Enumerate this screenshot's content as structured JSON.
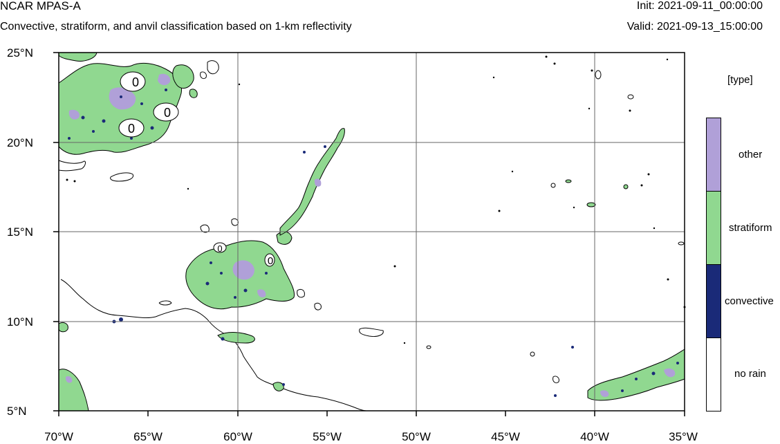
{
  "header": {
    "title": "NCAR MPAS-A",
    "subtitle": "Convective, stratiform, and anvil classification based on 1-km reflectivity",
    "init": "Init: 2021-09-11_00:00:00",
    "valid": "Valid: 2021-09-13_15:00:00"
  },
  "map": {
    "lat_range": [
      5,
      25
    ],
    "lon_range": [
      -70,
      -35
    ],
    "lat_ticks": [
      {
        "value": 25,
        "label": "25°N"
      },
      {
        "value": 20,
        "label": "20°N"
      },
      {
        "value": 15,
        "label": "15°N"
      },
      {
        "value": 10,
        "label": "10°N"
      },
      {
        "value": 5,
        "label": "5°N"
      }
    ],
    "lon_ticks": [
      {
        "value": -70,
        "label": "70°W"
      },
      {
        "value": -65,
        "label": "65°W"
      },
      {
        "value": -60,
        "label": "60°W"
      },
      {
        "value": -55,
        "label": "55°W"
      },
      {
        "value": -50,
        "label": "50°W"
      },
      {
        "value": -45,
        "label": "45°W"
      },
      {
        "value": -40,
        "label": "40°W"
      },
      {
        "value": -35,
        "label": "35°W"
      }
    ],
    "contour_labels": [
      "0",
      "0",
      "0",
      "0",
      "0"
    ]
  },
  "legend": {
    "title": "[type]",
    "items": [
      {
        "label": "other",
        "color": "#b0a0d8"
      },
      {
        "label": "stratiform",
        "color": "#90d890"
      },
      {
        "label": "convective",
        "color": "#1a2a78"
      },
      {
        "label": "no rain",
        "color": "#ffffff"
      }
    ]
  }
}
